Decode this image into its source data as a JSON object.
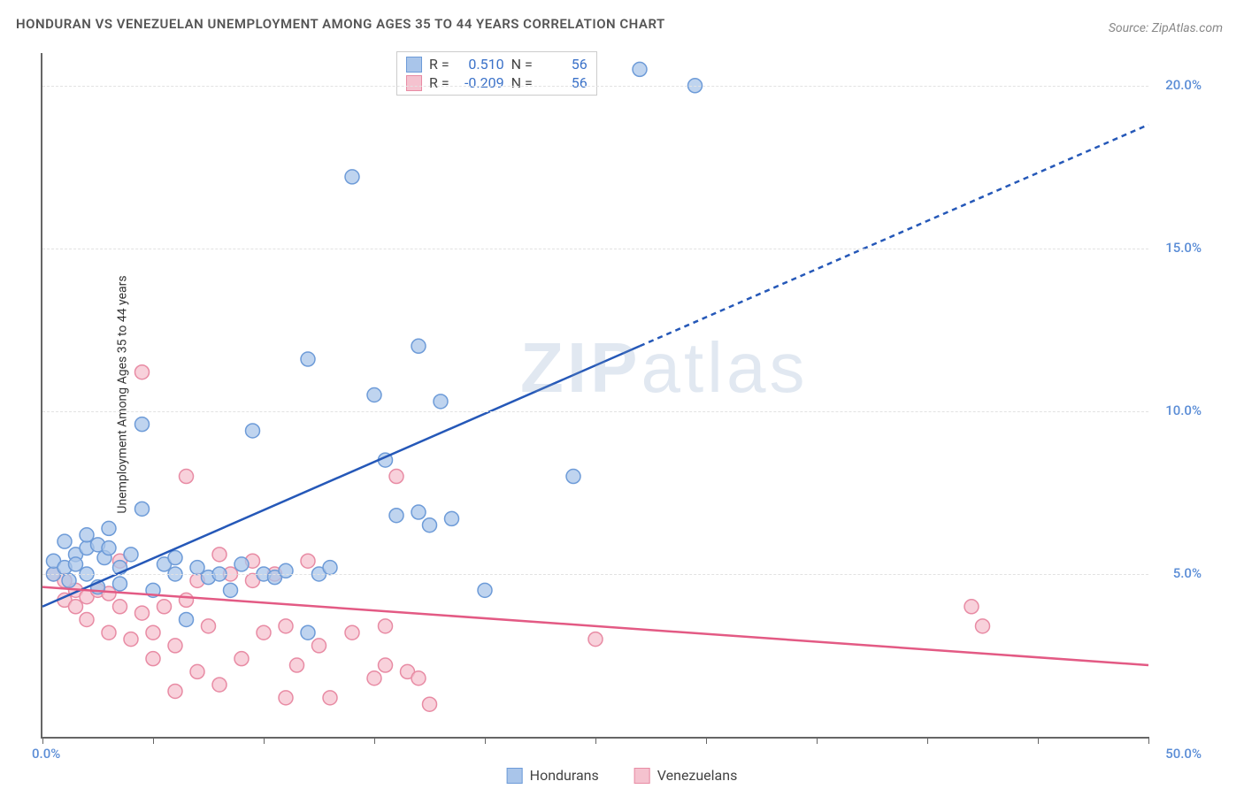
{
  "title": "HONDURAN VS VENEZUELAN UNEMPLOYMENT AMONG AGES 35 TO 44 YEARS CORRELATION CHART",
  "title_fontsize": 15,
  "source_label": "Source: ZipAtlas.com",
  "source_fontsize": 14,
  "ylabel": "Unemployment Among Ages 35 to 44 years",
  "ylabel_fontsize": 14,
  "watermark": "ZIPatlas",
  "chart": {
    "type": "scatter_with_regression",
    "xlim": [
      0,
      50
    ],
    "ylim": [
      0,
      21
    ],
    "xtick_positions": [
      0,
      5,
      10,
      15,
      20,
      25,
      30,
      35,
      40,
      45,
      50
    ],
    "xtick_labels_shown": {
      "0": "0.0%",
      "50": "50.0%"
    },
    "ytick_positions": [
      5,
      10,
      15,
      20
    ],
    "ytick_labels": {
      "5": "5.0%",
      "10": "10.0%",
      "15": "15.0%",
      "20": "20.0%"
    },
    "grid_color": "#e2e2e2",
    "axis_color": "#666666",
    "background_color": "#ffffff",
    "tick_label_color": "#5b8dd6",
    "tick_label_fontsize": 15,
    "marker_radius": 8,
    "marker_stroke_width": 1.5,
    "line_width": 2.5,
    "dash_pattern": "6,5",
    "series": {
      "hondurans": {
        "legend_label": "Hondurans",
        "color_fill": "#a9c5ea",
        "color_stroke": "#6d9bd8",
        "line_color": "#2558b8",
        "correlation_R": "0.510",
        "correlation_N": "56",
        "regression": {
          "x1": 0,
          "y1": 4.0,
          "x2_solid": 27,
          "y2_solid": 12.0,
          "x2_dash": 50,
          "y2_dash": 18.8
        },
        "points": [
          [
            0.5,
            5.0
          ],
          [
            0.5,
            5.4
          ],
          [
            1.0,
            5.2
          ],
          [
            1.0,
            6.0
          ],
          [
            1.2,
            4.8
          ],
          [
            1.5,
            5.6
          ],
          [
            1.5,
            5.3
          ],
          [
            2.0,
            5.8
          ],
          [
            2.0,
            5.0
          ],
          [
            2.0,
            6.2
          ],
          [
            2.5,
            4.6
          ],
          [
            2.5,
            5.9
          ],
          [
            2.8,
            5.5
          ],
          [
            3.0,
            5.8
          ],
          [
            3.0,
            6.4
          ],
          [
            3.5,
            5.2
          ],
          [
            3.5,
            4.7
          ],
          [
            4.0,
            5.6
          ],
          [
            4.5,
            9.6
          ],
          [
            4.5,
            7.0
          ],
          [
            5.0,
            4.5
          ],
          [
            5.5,
            5.3
          ],
          [
            6.0,
            5.0
          ],
          [
            6.0,
            5.5
          ],
          [
            6.5,
            3.6
          ],
          [
            7.0,
            5.2
          ],
          [
            7.5,
            4.9
          ],
          [
            8.0,
            5.0
          ],
          [
            8.5,
            4.5
          ],
          [
            9.0,
            5.3
          ],
          [
            9.5,
            9.4
          ],
          [
            10.0,
            5.0
          ],
          [
            10.5,
            4.9
          ],
          [
            11.0,
            5.1
          ],
          [
            12.0,
            11.6
          ],
          [
            12.0,
            3.2
          ],
          [
            12.5,
            5.0
          ],
          [
            13.0,
            5.2
          ],
          [
            14.0,
            17.2
          ],
          [
            15.0,
            10.5
          ],
          [
            15.5,
            8.5
          ],
          [
            16.0,
            6.8
          ],
          [
            17.0,
            12.0
          ],
          [
            17.0,
            6.9
          ],
          [
            17.5,
            6.5
          ],
          [
            18.0,
            10.3
          ],
          [
            18.5,
            6.7
          ],
          [
            20.0,
            4.5
          ],
          [
            24.0,
            8.0
          ],
          [
            27.0,
            20.5
          ],
          [
            29.5,
            20.0
          ]
        ]
      },
      "venezuelans": {
        "legend_label": "Venezuelans",
        "color_fill": "#f5c2cf",
        "color_stroke": "#e88ba4",
        "line_color": "#e35a84",
        "correlation_R": "-0.209",
        "correlation_N": "56",
        "regression": {
          "x1": 0,
          "y1": 4.6,
          "x2_solid": 50,
          "y2_solid": 2.2,
          "x2_dash": 50,
          "y2_dash": 2.2
        },
        "points": [
          [
            0.5,
            5.0
          ],
          [
            1.0,
            4.8
          ],
          [
            1.0,
            4.2
          ],
          [
            1.5,
            4.5
          ],
          [
            1.5,
            4.0
          ],
          [
            2.0,
            4.3
          ],
          [
            2.0,
            3.6
          ],
          [
            2.5,
            4.5
          ],
          [
            3.0,
            3.2
          ],
          [
            3.0,
            4.4
          ],
          [
            3.5,
            4.0
          ],
          [
            3.5,
            5.4
          ],
          [
            4.0,
            3.0
          ],
          [
            4.5,
            3.8
          ],
          [
            4.5,
            11.2
          ],
          [
            5.0,
            3.2
          ],
          [
            5.0,
            2.4
          ],
          [
            5.5,
            4.0
          ],
          [
            6.0,
            1.4
          ],
          [
            6.0,
            2.8
          ],
          [
            6.5,
            4.2
          ],
          [
            6.5,
            8.0
          ],
          [
            7.0,
            2.0
          ],
          [
            7.0,
            4.8
          ],
          [
            7.5,
            3.4
          ],
          [
            8.0,
            1.6
          ],
          [
            8.0,
            5.6
          ],
          [
            8.5,
            5.0
          ],
          [
            9.0,
            2.4
          ],
          [
            9.5,
            4.8
          ],
          [
            9.5,
            5.4
          ],
          [
            10.0,
            3.2
          ],
          [
            10.5,
            5.0
          ],
          [
            11.0,
            1.2
          ],
          [
            11.0,
            3.4
          ],
          [
            11.5,
            2.2
          ],
          [
            12.0,
            5.4
          ],
          [
            12.5,
            2.8
          ],
          [
            13.0,
            1.2
          ],
          [
            14.0,
            3.2
          ],
          [
            15.0,
            1.8
          ],
          [
            15.5,
            2.2
          ],
          [
            15.5,
            3.4
          ],
          [
            16.0,
            8.0
          ],
          [
            16.5,
            2.0
          ],
          [
            17.0,
            1.8
          ],
          [
            17.5,
            1.0
          ],
          [
            25.0,
            3.0
          ],
          [
            42.0,
            4.0
          ],
          [
            42.5,
            3.4
          ]
        ]
      }
    }
  },
  "corr_box": {
    "R_label": "R =",
    "N_label": "N ="
  }
}
